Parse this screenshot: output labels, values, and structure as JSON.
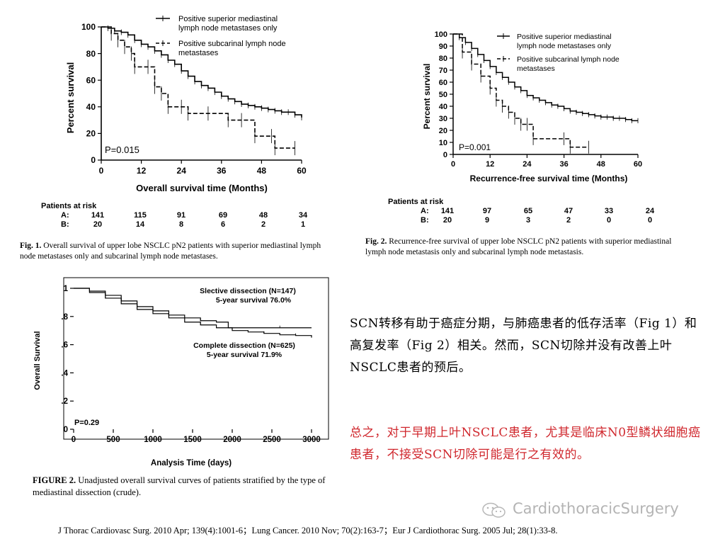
{
  "fig1": {
    "ylabel": "Percent survival",
    "xlabel": "Overall survival time (Months)",
    "legend": [
      "Positive superior mediastinal lymph node metastases only",
      "Positive subcarinal lymph node metastases"
    ],
    "pvalue": "P=0.015",
    "risk_title": "Patients at risk",
    "risk_rows": [
      {
        "label": "A:",
        "values": [
          "141",
          "115",
          "91",
          "69",
          "48",
          "34"
        ]
      },
      {
        "label": "B:",
        "values": [
          "20",
          "14",
          "8",
          "6",
          "2",
          "1"
        ]
      }
    ],
    "caption_bold": "Fig. 1.",
    "caption": "Overall survival of upper lobe NSCLC pN2 patients with superior mediastinal lymph node metastases only and subcarinal lymph node metastases."
  },
  "fig2": {
    "ylabel": "Percent survival",
    "xlabel": "Recurrence-free survival time (Months)",
    "legend": [
      "Positive superior mediastinal lymph node metastases only",
      "Positive subcarinal lymph node metastases"
    ],
    "pvalue": "P=0.001",
    "risk_title": "Patients at risk",
    "risk_rows": [
      {
        "label": "A:",
        "values": [
          "141",
          "97",
          "65",
          "47",
          "33",
          "24"
        ]
      },
      {
        "label": "B:",
        "values": [
          "20",
          "9",
          "3",
          "2",
          "0",
          "0"
        ]
      }
    ],
    "caption_bold": "Fig. 2.",
    "caption": "Recurrence-free survival of upper lobe NSCLC pN2 patients with superior mediastinal lymph node metastasis only and subcarinal lymph node metastasis."
  },
  "fig3": {
    "ylabel": "Overall Survival",
    "xlabel": "Analysis Time (days)",
    "annot_selective": [
      "Slective dissection (N=147)",
      "5-year survival 76.0%"
    ],
    "annot_complete": [
      "Complete dissection (N=625)",
      "5-year survival 71.9%"
    ],
    "pvalue": "P=0.29",
    "caption_bold": "FIGURE 2.",
    "caption": "Unadjusted overall survival curves of patients stratified by the type of mediastinal dissection (crude)."
  },
  "text": {
    "para1": "SCN转移有助于癌症分期，与肺癌患者的低存活率（Fig 1）和高复发率（Fig 2）相关。然而，SCN切除并没有改善上叶NSCLC患者的预后。",
    "para2": "总之，对于早期上叶NSCLC患者，尤其是临床N0型鳞状细胞癌患者，不接受SCN切除可能是行之有效的。",
    "para2_color": "#d0282e"
  },
  "watermark": "CardiothoracicSurgery",
  "reference": "J Thorac Cardiovasc Surg. 2010 Apr; 139(4):1001-6；Lung Cancer. 2010 Nov; 70(2):163-7；Eur J Cardiothorac Surg. 2005 Jul; 28(1):33-8.",
  "chart_data": [
    {
      "type": "line",
      "xlabel": "Overall survival time (Months)",
      "ylabel": "Percent survival",
      "xlim": [
        0,
        60
      ],
      "ylim": [
        0,
        100
      ],
      "xticks": [
        0,
        12,
        24,
        36,
        48,
        60
      ],
      "yticks": [
        0,
        20,
        40,
        60,
        80,
        100
      ],
      "legend_position": "top-right",
      "series": [
        {
          "name": "Positive superior mediastinal lymph node metastases only",
          "style": "solid",
          "x": [
            0,
            2,
            4,
            6,
            8,
            10,
            12,
            14,
            16,
            18,
            20,
            22,
            24,
            26,
            28,
            30,
            32,
            34,
            36,
            38,
            40,
            42,
            44,
            46,
            48,
            50,
            52,
            54,
            56,
            58,
            60
          ],
          "y": [
            100,
            99,
            97,
            96,
            94,
            90,
            87,
            85,
            82,
            79,
            75,
            72,
            67,
            63,
            59,
            56,
            54,
            51,
            48,
            46,
            44,
            42,
            41,
            40,
            39,
            38,
            37,
            36,
            36,
            34,
            32
          ]
        },
        {
          "name": "Positive subcarinal lymph node metastases",
          "style": "dashed",
          "x": [
            0,
            3,
            5,
            7,
            9,
            10,
            14,
            16,
            18,
            20,
            24,
            26,
            32,
            38,
            42,
            46,
            51,
            52,
            58
          ],
          "y": [
            100,
            95,
            90,
            85,
            80,
            70,
            70,
            55,
            50,
            40,
            40,
            35,
            35,
            30,
            30,
            18,
            18,
            9,
            9
          ]
        }
      ]
    },
    {
      "type": "line",
      "xlabel": "Recurrence-free survival time (Months)",
      "ylabel": "Percent survival",
      "xlim": [
        0,
        60
      ],
      "ylim": [
        0,
        100
      ],
      "xticks": [
        0,
        12,
        24,
        36,
        48,
        60
      ],
      "yticks": [
        0,
        10,
        20,
        30,
        40,
        50,
        60,
        70,
        80,
        90,
        100
      ],
      "legend_position": "top-right",
      "series": [
        {
          "name": "Positive superior mediastinal lymph node metastases only",
          "style": "solid",
          "x": [
            0,
            2,
            4,
            6,
            8,
            10,
            12,
            14,
            16,
            18,
            20,
            22,
            24,
            26,
            28,
            30,
            32,
            34,
            36,
            38,
            40,
            42,
            44,
            46,
            48,
            50,
            52,
            54,
            56,
            58,
            60
          ],
          "y": [
            100,
            97,
            93,
            88,
            83,
            78,
            73,
            68,
            64,
            60,
            56,
            53,
            49,
            47,
            45,
            43,
            41,
            40,
            38,
            36,
            35,
            34,
            33,
            32,
            31,
            31,
            30,
            30,
            29,
            28,
            28
          ]
        },
        {
          "name": "Positive subcarinal lymph node metastases",
          "style": "dashed",
          "x": [
            0,
            3,
            6,
            9,
            12,
            14,
            16,
            18,
            20,
            22,
            24,
            26,
            36,
            38,
            44
          ],
          "y": [
            100,
            85,
            75,
            65,
            55,
            45,
            40,
            35,
            30,
            25,
            25,
            13,
            13,
            6,
            6
          ]
        }
      ]
    },
    {
      "type": "line",
      "xlabel": "Analysis Time (days)",
      "ylabel": "Overall Survival",
      "xlim": [
        0,
        3000
      ],
      "ylim": [
        0,
        1
      ],
      "xticks": [
        0,
        500,
        1000,
        1500,
        2000,
        2500,
        3000
      ],
      "yticks": [
        0,
        0.2,
        0.4,
        0.6,
        0.8,
        1
      ],
      "series": [
        {
          "name": "Slective dissection (N=147)",
          "style": "solid",
          "x": [
            0,
            200,
            400,
            600,
            800,
            1000,
            1200,
            1400,
            1600,
            1800,
            1950,
            2200,
            2600,
            3000
          ],
          "y": [
            1,
            0.98,
            0.95,
            0.91,
            0.87,
            0.84,
            0.81,
            0.79,
            0.77,
            0.76,
            0.72,
            0.72,
            0.72,
            0.72
          ]
        },
        {
          "name": "Complete dissection (N=625)",
          "style": "solid",
          "x": [
            0,
            200,
            400,
            600,
            800,
            1000,
            1200,
            1400,
            1600,
            1800,
            2000,
            2200,
            2400,
            2600,
            2800,
            3000
          ],
          "y": [
            1,
            0.97,
            0.93,
            0.89,
            0.85,
            0.82,
            0.79,
            0.76,
            0.74,
            0.72,
            0.7,
            0.69,
            0.68,
            0.67,
            0.665,
            0.65
          ]
        }
      ]
    }
  ]
}
